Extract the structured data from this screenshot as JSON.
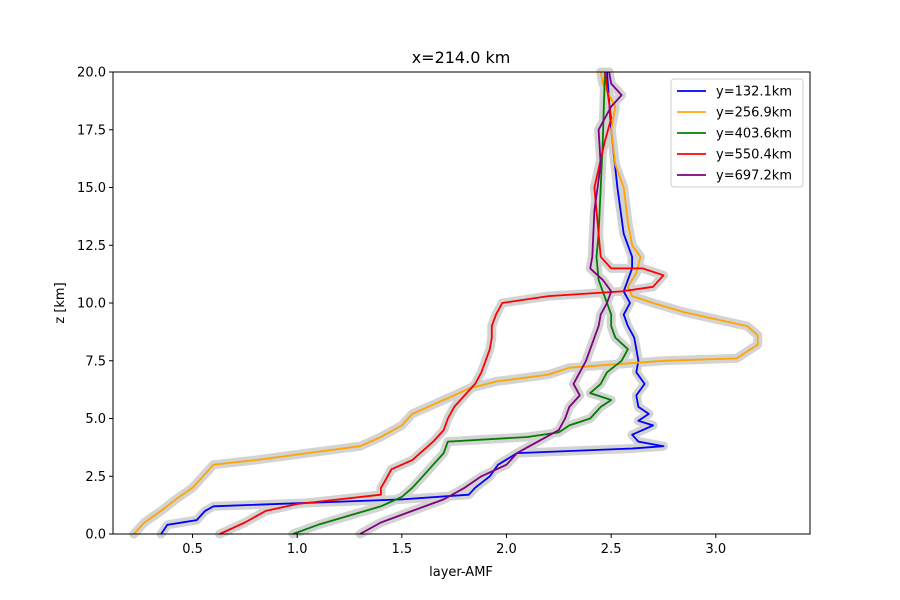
{
  "chart_data": {
    "type": "line",
    "title": "x=214.0 km",
    "xlabel": "layer-AMF",
    "ylabel": "z [km]",
    "xlim": [
      0.12,
      3.45
    ],
    "ylim": [
      0,
      20
    ],
    "x_ticks": [
      0.5,
      1.0,
      1.5,
      2.0,
      2.5,
      3.0
    ],
    "x_tick_labels": [
      "0.5",
      "1.0",
      "1.5",
      "2.0",
      "2.5",
      "3.0"
    ],
    "y_ticks": [
      0,
      2.5,
      5,
      7.5,
      10,
      12.5,
      15,
      17.5,
      20
    ],
    "y_tick_labels": [
      "0.0",
      "2.5",
      "5.0",
      "7.5",
      "10.0",
      "12.5",
      "15.0",
      "17.5",
      "20.0"
    ],
    "grid": false,
    "legend_position": "upper right",
    "uncertainty_band_color": "#d3d3d3",
    "series": [
      {
        "name": "y=132.1km",
        "color": "#0000ff",
        "points": [
          [
            0.35,
            0
          ],
          [
            0.38,
            0.4
          ],
          [
            0.52,
            0.6
          ],
          [
            0.56,
            1.0
          ],
          [
            0.6,
            1.2
          ],
          [
            1.5,
            1.5
          ],
          [
            1.82,
            1.7
          ],
          [
            1.85,
            2.0
          ],
          [
            1.92,
            2.5
          ],
          [
            1.96,
            3.0
          ],
          [
            2.05,
            3.5
          ],
          [
            2.6,
            3.7
          ],
          [
            2.75,
            3.8
          ],
          [
            2.63,
            4.0
          ],
          [
            2.6,
            4.3
          ],
          [
            2.65,
            4.5
          ],
          [
            2.7,
            4.7
          ],
          [
            2.63,
            4.9
          ],
          [
            2.68,
            5.2
          ],
          [
            2.63,
            5.5
          ],
          [
            2.62,
            6.0
          ],
          [
            2.66,
            6.5
          ],
          [
            2.62,
            7.0
          ],
          [
            2.63,
            7.5
          ],
          [
            2.62,
            8.0
          ],
          [
            2.61,
            8.5
          ],
          [
            2.58,
            9.0
          ],
          [
            2.56,
            9.5
          ],
          [
            2.59,
            10.0
          ],
          [
            2.56,
            10.5
          ],
          [
            2.58,
            11.0
          ],
          [
            2.6,
            11.5
          ],
          [
            2.6,
            12.0
          ],
          [
            2.56,
            13.0
          ],
          [
            2.53,
            15.0
          ],
          [
            2.5,
            17.5
          ],
          [
            2.48,
            20.0
          ]
        ]
      },
      {
        "name": "y=256.9km",
        "color": "#ffa500",
        "points": [
          [
            0.22,
            0
          ],
          [
            0.27,
            0.5
          ],
          [
            0.35,
            1.0
          ],
          [
            0.42,
            1.5
          ],
          [
            0.5,
            2.0
          ],
          [
            0.55,
            2.5
          ],
          [
            0.6,
            3.0
          ],
          [
            0.8,
            3.2
          ],
          [
            1.05,
            3.5
          ],
          [
            1.3,
            3.8
          ],
          [
            1.4,
            4.2
          ],
          [
            1.5,
            4.7
          ],
          [
            1.55,
            5.2
          ],
          [
            1.65,
            5.6
          ],
          [
            1.75,
            6.0
          ],
          [
            1.82,
            6.3
          ],
          [
            1.95,
            6.6
          ],
          [
            2.2,
            6.9
          ],
          [
            2.3,
            7.2
          ],
          [
            2.75,
            7.5
          ],
          [
            3.1,
            7.6
          ],
          [
            3.15,
            7.9
          ],
          [
            3.2,
            8.2
          ],
          [
            3.2,
            8.6
          ],
          [
            3.15,
            9.0
          ],
          [
            3.0,
            9.3
          ],
          [
            2.85,
            9.6
          ],
          [
            2.7,
            10.0
          ],
          [
            2.6,
            10.3
          ],
          [
            2.58,
            10.7
          ],
          [
            2.62,
            11.3
          ],
          [
            2.64,
            12.0
          ],
          [
            2.6,
            12.5
          ],
          [
            2.58,
            13.5
          ],
          [
            2.56,
            15.0
          ],
          [
            2.52,
            16.0
          ],
          [
            2.5,
            17.5
          ],
          [
            2.52,
            18.5
          ],
          [
            2.46,
            19.5
          ],
          [
            2.45,
            20.0
          ]
        ]
      },
      {
        "name": "y=403.6km",
        "color": "#008000",
        "points": [
          [
            0.98,
            0
          ],
          [
            1.1,
            0.4
          ],
          [
            1.25,
            0.8
          ],
          [
            1.4,
            1.2
          ],
          [
            1.5,
            1.6
          ],
          [
            1.55,
            2.0
          ],
          [
            1.6,
            2.5
          ],
          [
            1.65,
            3.0
          ],
          [
            1.7,
            3.5
          ],
          [
            1.72,
            4.0
          ],
          [
            2.1,
            4.2
          ],
          [
            2.25,
            4.4
          ],
          [
            2.3,
            4.7
          ],
          [
            2.4,
            5.0
          ],
          [
            2.45,
            5.5
          ],
          [
            2.5,
            5.8
          ],
          [
            2.4,
            6.1
          ],
          [
            2.45,
            6.5
          ],
          [
            2.48,
            7.0
          ],
          [
            2.55,
            7.5
          ],
          [
            2.58,
            8.0
          ],
          [
            2.52,
            8.5
          ],
          [
            2.5,
            9.0
          ],
          [
            2.5,
            9.5
          ],
          [
            2.48,
            10.0
          ],
          [
            2.46,
            10.5
          ],
          [
            2.44,
            11.0
          ],
          [
            2.43,
            12.0
          ],
          [
            2.44,
            13.0
          ],
          [
            2.45,
            15.0
          ],
          [
            2.46,
            17.0
          ],
          [
            2.47,
            20.0
          ]
        ]
      },
      {
        "name": "y=550.4km",
        "color": "#ff0000",
        "points": [
          [
            0.63,
            0
          ],
          [
            0.75,
            0.5
          ],
          [
            0.85,
            1.0
          ],
          [
            1.0,
            1.3
          ],
          [
            1.2,
            1.5
          ],
          [
            1.4,
            1.7
          ],
          [
            1.4,
            2.0
          ],
          [
            1.42,
            2.3
          ],
          [
            1.45,
            2.8
          ],
          [
            1.55,
            3.2
          ],
          [
            1.6,
            3.6
          ],
          [
            1.65,
            4.0
          ],
          [
            1.7,
            4.5
          ],
          [
            1.72,
            5.0
          ],
          [
            1.75,
            5.5
          ],
          [
            1.8,
            6.0
          ],
          [
            1.85,
            6.5
          ],
          [
            1.88,
            7.0
          ],
          [
            1.9,
            7.5
          ],
          [
            1.92,
            8.0
          ],
          [
            1.93,
            8.5
          ],
          [
            1.93,
            9.0
          ],
          [
            1.95,
            9.5
          ],
          [
            1.98,
            10.0
          ],
          [
            2.2,
            10.3
          ],
          [
            2.55,
            10.5
          ],
          [
            2.7,
            10.7
          ],
          [
            2.75,
            11.2
          ],
          [
            2.65,
            11.5
          ],
          [
            2.5,
            11.5
          ],
          [
            2.45,
            12.0
          ],
          [
            2.44,
            13.0
          ],
          [
            2.42,
            15.0
          ],
          [
            2.47,
            17.0
          ],
          [
            2.5,
            18.0
          ],
          [
            2.47,
            20.0
          ]
        ]
      },
      {
        "name": "y=697.2km",
        "color": "#800080",
        "points": [
          [
            1.3,
            0
          ],
          [
            1.4,
            0.5
          ],
          [
            1.55,
            1.0
          ],
          [
            1.7,
            1.5
          ],
          [
            1.8,
            2.0
          ],
          [
            1.88,
            2.5
          ],
          [
            2.0,
            3.0
          ],
          [
            2.05,
            3.5
          ],
          [
            2.15,
            4.0
          ],
          [
            2.25,
            4.5
          ],
          [
            2.28,
            5.0
          ],
          [
            2.3,
            5.5
          ],
          [
            2.35,
            6.0
          ],
          [
            2.32,
            6.5
          ],
          [
            2.35,
            7.0
          ],
          [
            2.38,
            7.5
          ],
          [
            2.4,
            8.0
          ],
          [
            2.42,
            8.5
          ],
          [
            2.44,
            9.0
          ],
          [
            2.45,
            9.5
          ],
          [
            2.48,
            10.0
          ],
          [
            2.5,
            10.5
          ],
          [
            2.46,
            11.0
          ],
          [
            2.4,
            11.5
          ],
          [
            2.41,
            12.0
          ],
          [
            2.42,
            14.0
          ],
          [
            2.45,
            16.0
          ],
          [
            2.44,
            17.5
          ],
          [
            2.5,
            18.5
          ],
          [
            2.55,
            19.0
          ],
          [
            2.5,
            19.5
          ],
          [
            2.49,
            20.0
          ]
        ]
      }
    ]
  }
}
